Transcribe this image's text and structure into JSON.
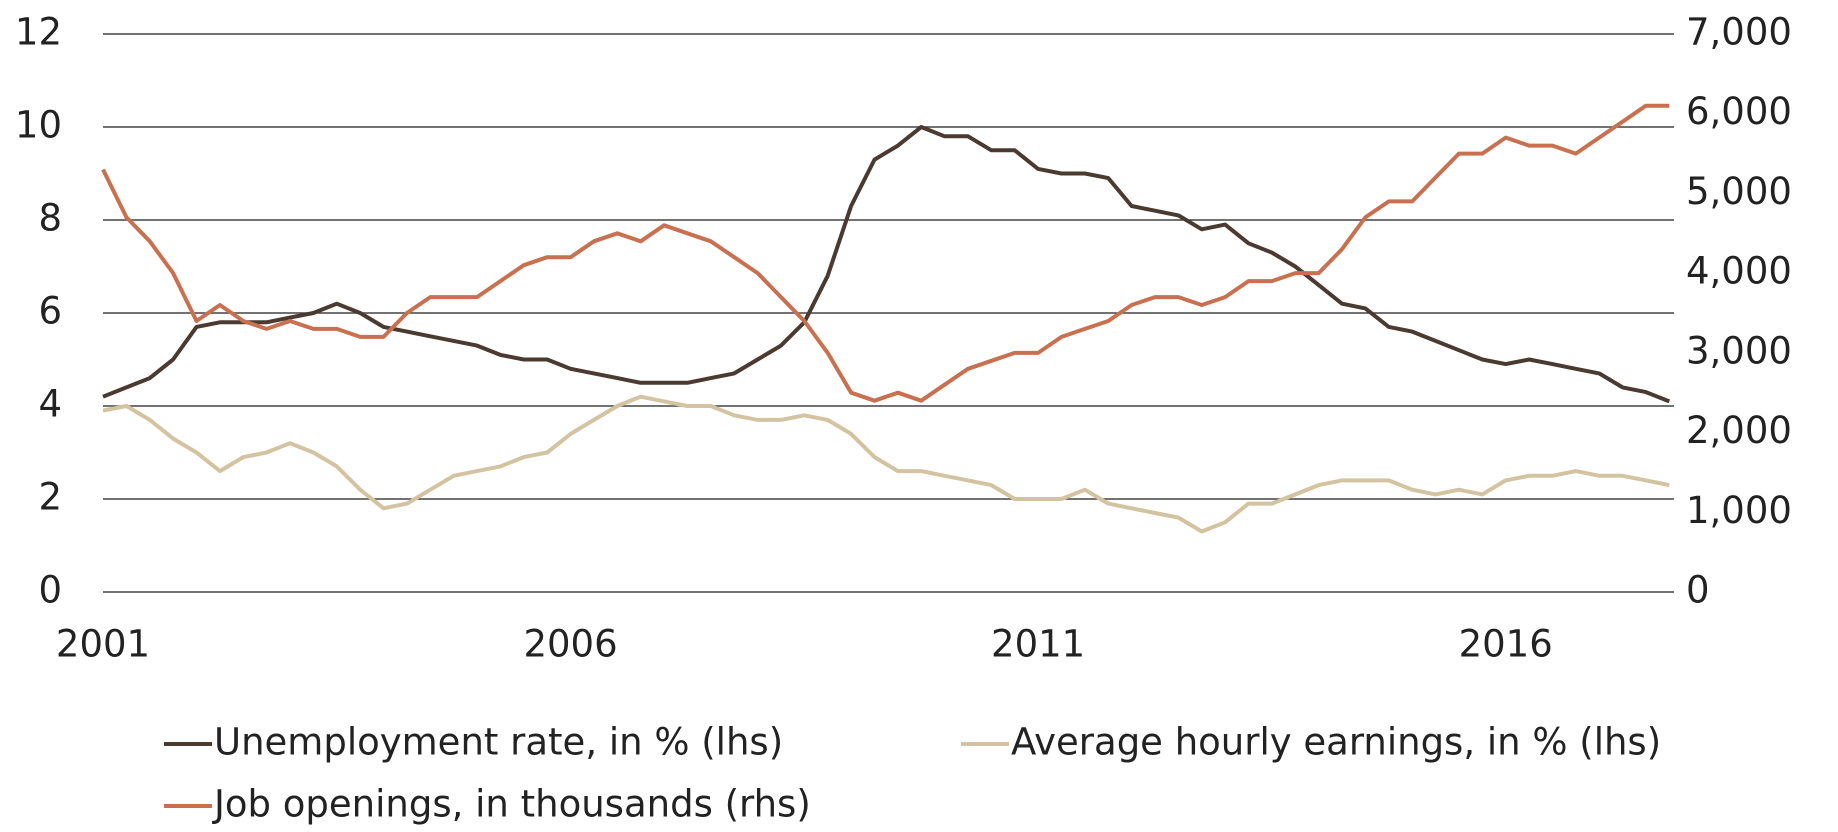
{
  "chart_data": {
    "type": "line",
    "x": [
      2001,
      2001.25,
      2001.5,
      2001.75,
      2002,
      2002.25,
      2002.5,
      2002.75,
      2003,
      2003.25,
      2003.5,
      2003.75,
      2004,
      2004.25,
      2004.5,
      2004.75,
      2005,
      2005.25,
      2005.5,
      2005.75,
      2006,
      2006.25,
      2006.5,
      2006.75,
      2007,
      2007.25,
      2007.5,
      2007.75,
      2008,
      2008.25,
      2008.5,
      2008.75,
      2009,
      2009.25,
      2009.5,
      2009.75,
      2010,
      2010.25,
      2010.5,
      2010.75,
      2011,
      2011.25,
      2011.5,
      2011.75,
      2012,
      2012.25,
      2012.5,
      2012.75,
      2013,
      2013.25,
      2013.5,
      2013.75,
      2014,
      2014.25,
      2014.5,
      2014.75,
      2015,
      2015.25,
      2015.5,
      2015.75,
      2016,
      2016.25,
      2016.5,
      2016.75,
      2017,
      2017.25,
      2017.5,
      2017.75
    ],
    "series": [
      {
        "name": "Unemployment rate, in % (lhs)",
        "color": "#4a3a30",
        "values": [
          4.2,
          4.4,
          4.6,
          5.0,
          5.7,
          5.8,
          5.8,
          5.8,
          5.9,
          6.0,
          6.2,
          6.0,
          5.7,
          5.6,
          5.5,
          5.4,
          5.3,
          5.1,
          5.0,
          5.0,
          4.8,
          4.7,
          4.6,
          4.5,
          4.5,
          4.5,
          4.6,
          4.7,
          5.0,
          5.3,
          5.8,
          6.8,
          8.3,
          9.3,
          9.6,
          10.0,
          9.8,
          9.8,
          9.5,
          9.5,
          9.1,
          9.0,
          9.0,
          8.9,
          8.3,
          8.2,
          8.1,
          7.8,
          7.9,
          7.5,
          7.3,
          7.0,
          6.6,
          6.2,
          6.1,
          5.7,
          5.6,
          5.4,
          5.2,
          5.0,
          4.9,
          5.0,
          4.9,
          4.8,
          4.7,
          4.4,
          4.3,
          4.1
        ]
      },
      {
        "name": "Average hourly earnings, in % (lhs)",
        "color": "#d3c3a0",
        "values": [
          3.9,
          4.0,
          3.7,
          3.3,
          3.0,
          2.6,
          2.9,
          3.0,
          3.2,
          3.0,
          2.7,
          2.2,
          1.8,
          1.9,
          2.2,
          2.5,
          2.6,
          2.7,
          2.9,
          3.0,
          3.4,
          3.7,
          4.0,
          4.2,
          4.1,
          4.0,
          4.0,
          3.8,
          3.7,
          3.7,
          3.8,
          3.7,
          3.4,
          2.9,
          2.6,
          2.6,
          2.5,
          2.4,
          2.3,
          2.0,
          2.0,
          2.0,
          2.2,
          1.9,
          1.8,
          1.7,
          1.6,
          1.3,
          1.5,
          1.9,
          1.9,
          2.1,
          2.3,
          2.4,
          2.4,
          2.4,
          2.2,
          2.1,
          2.2,
          2.1,
          2.4,
          2.5,
          2.5,
          2.6,
          2.5,
          2.5,
          2.4,
          2.3
        ]
      },
      {
        "name": "Job openings, in thousands (rhs)",
        "color": "#c8704f",
        "axis": "y2",
        "values": [
          5300,
          4700,
          4400,
          4000,
          3400,
          3600,
          3400,
          3300,
          3400,
          3300,
          3300,
          3200,
          3200,
          3500,
          3700,
          3700,
          3700,
          3900,
          4100,
          4200,
          4200,
          4400,
          4500,
          4400,
          4600,
          4500,
          4400,
          4200,
          4000,
          3700,
          3400,
          3000,
          2500,
          2400,
          2500,
          2400,
          2600,
          2800,
          2900,
          3000,
          3000,
          3200,
          3300,
          3400,
          3600,
          3700,
          3700,
          3600,
          3700,
          3900,
          3900,
          4000,
          4000,
          4300,
          4700,
          4900,
          4900,
          5200,
          5500,
          5500,
          5700,
          5600,
          5600,
          5500,
          5700,
          5900,
          6100,
          6100
        ]
      }
    ],
    "xlim": [
      2001,
      2017.8
    ],
    "xticks": [
      2001,
      2006,
      2011,
      2016
    ],
    "ylim": [
      0,
      12
    ],
    "yticks": [
      0,
      2,
      4,
      6,
      8,
      10,
      12
    ],
    "y2lim": [
      0,
      7000
    ],
    "y2ticks": [
      0,
      {
        "value": 1000,
        "label": "1,000"
      },
      {
        "value": 2000,
        "label": "2,000"
      },
      {
        "value": 3000,
        "label": "3,000"
      },
      {
        "value": 4000,
        "label": "4,000"
      },
      {
        "value": 5000,
        "label": "5,000"
      },
      {
        "value": 6000,
        "label": "6,000"
      },
      {
        "value": 7000,
        "label": "7,000"
      }
    ],
    "grid": true
  }
}
